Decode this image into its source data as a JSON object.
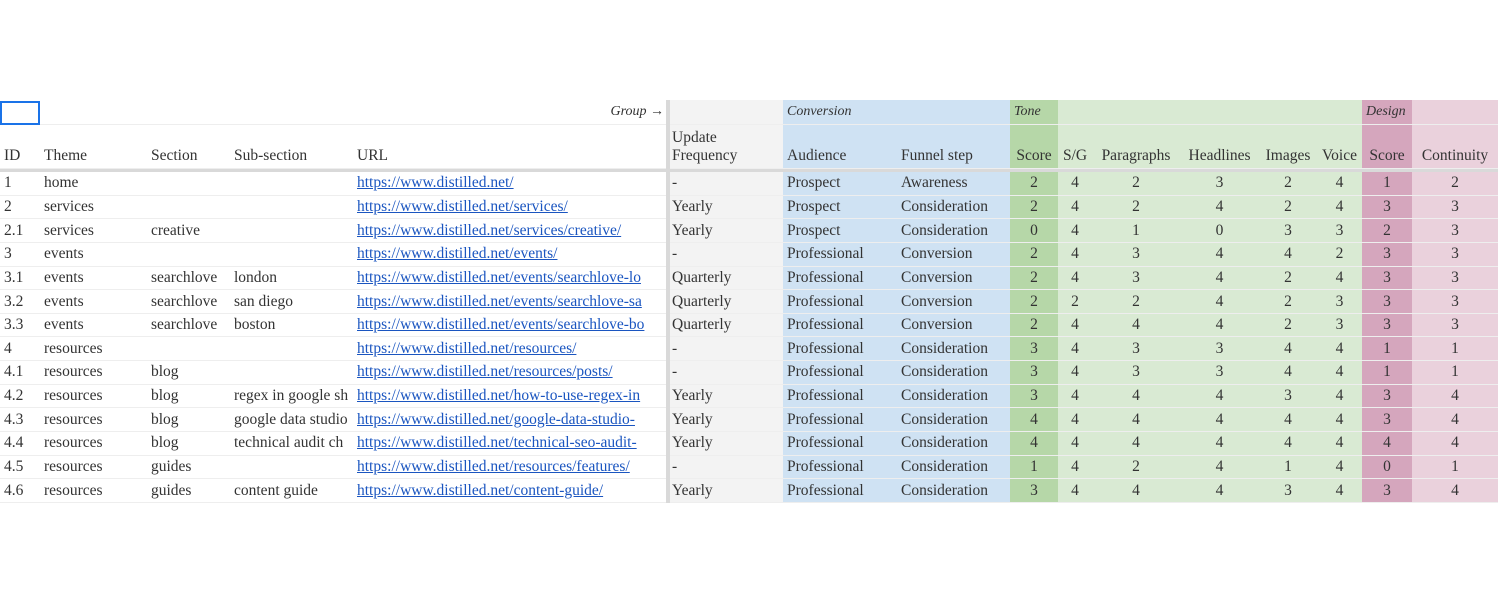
{
  "group_row": {
    "group": "Group →",
    "conversion": "Conversion",
    "tone": "Tone",
    "design": "Design"
  },
  "table": {
    "columns": [
      "ID",
      "Theme",
      "Section",
      "Sub-section",
      "URL",
      "Update Frequency",
      "Audience",
      "Funnel step",
      "Score",
      "S/G",
      "Paragraphs",
      "Headlines",
      "Images",
      "Voice",
      "Score",
      "Continuity"
    ],
    "rows": [
      [
        "1",
        "home",
        null,
        null,
        "https://www.distilled.net/",
        "-",
        "Prospect",
        "Awareness",
        2,
        4,
        2,
        3,
        2,
        4,
        1,
        2
      ],
      [
        "2",
        "services",
        null,
        null,
        "https://www.distilled.net/services/",
        "Yearly",
        "Prospect",
        "Consideration",
        2,
        4,
        2,
        4,
        2,
        4,
        3,
        3
      ],
      [
        "2.1",
        "services",
        "creative",
        null,
        "https://www.distilled.net/services/creative/",
        "Yearly",
        "Prospect",
        "Consideration",
        0,
        4,
        1,
        0,
        3,
        3,
        2,
        3
      ],
      [
        "3",
        "events",
        null,
        null,
        "https://www.distilled.net/events/",
        "-",
        "Professional",
        "Conversion",
        2,
        4,
        3,
        4,
        4,
        2,
        3,
        3
      ],
      [
        "3.1",
        "events",
        "searchlove",
        "london",
        "https://www.distilled.net/events/searchlove-lo",
        "Quarterly",
        "Professional",
        "Conversion",
        2,
        4,
        3,
        4,
        2,
        4,
        3,
        3
      ],
      [
        "3.2",
        "events",
        "searchlove",
        "san diego",
        "https://www.distilled.net/events/searchlove-sa",
        "Quarterly",
        "Professional",
        "Conversion",
        2,
        2,
        2,
        4,
        2,
        3,
        3,
        3
      ],
      [
        "3.3",
        "events",
        "searchlove",
        "boston",
        "https://www.distilled.net/events/searchlove-bo",
        "Quarterly",
        "Professional",
        "Conversion",
        2,
        4,
        4,
        4,
        2,
        3,
        3,
        3
      ],
      [
        "4",
        "resources",
        null,
        null,
        "https://www.distilled.net/resources/",
        "-",
        "Professional",
        "Consideration",
        3,
        4,
        3,
        3,
        4,
        4,
        1,
        1
      ],
      [
        "4.1",
        "resources",
        "blog",
        null,
        "https://www.distilled.net/resources/posts/",
        "-",
        "Professional",
        "Consideration",
        3,
        4,
        3,
        3,
        4,
        4,
        1,
        1
      ],
      [
        "4.2",
        "resources",
        "blog",
        "regex in google sh",
        "https://www.distilled.net/how-to-use-regex-in",
        "Yearly",
        "Professional",
        "Consideration",
        3,
        4,
        4,
        4,
        3,
        4,
        3,
        4
      ],
      [
        "4.3",
        "resources",
        "blog",
        "google data studio",
        "https://www.distilled.net/google-data-studio-",
        "Yearly",
        "Professional",
        "Consideration",
        4,
        4,
        4,
        4,
        4,
        4,
        3,
        4
      ],
      [
        "4.4",
        "resources",
        "blog",
        "technical audit ch",
        "https://www.distilled.net/technical-seo-audit-",
        "Yearly",
        "Professional",
        "Consideration",
        4,
        4,
        4,
        4,
        4,
        4,
        4,
        4
      ],
      [
        "4.5",
        "resources",
        "guides",
        null,
        "https://www.distilled.net/resources/features/",
        "-",
        "Professional",
        "Consideration",
        1,
        4,
        2,
        4,
        1,
        4,
        0,
        1
      ],
      [
        "4.6",
        "resources",
        "guides",
        "content guide",
        "https://www.distilled.net/content-guide/",
        "Yearly",
        "Professional",
        "Consideration",
        3,
        4,
        4,
        4,
        3,
        4,
        3,
        4
      ]
    ]
  }
}
